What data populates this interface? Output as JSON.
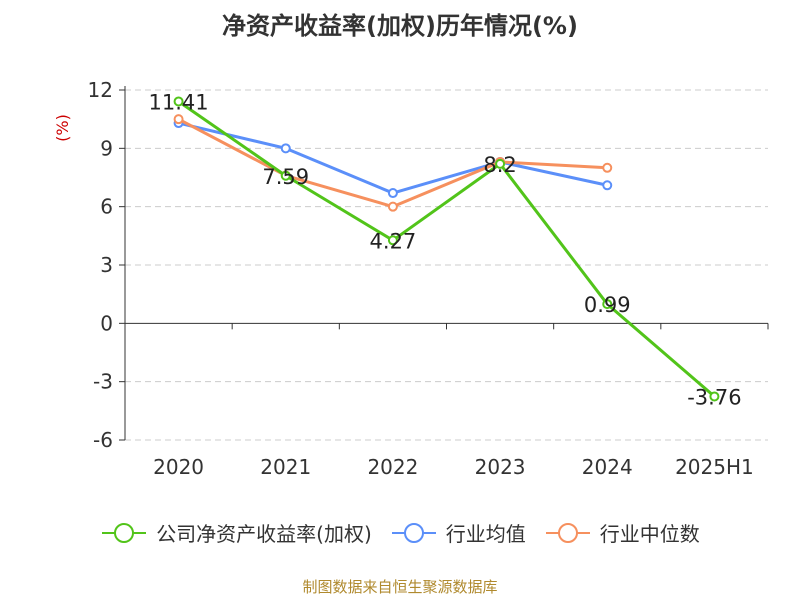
{
  "title": "净资产收益率(加权)历年情况(%)",
  "footer": "制图数据来自恒生聚源数据库",
  "colors": {
    "company": "#52c41a",
    "industry_avg": "#5b8ff9",
    "industry_median": "#f6905e",
    "axis": "#333333",
    "grid": "#cccccc",
    "unit": "#cc0000"
  },
  "chart_data": {
    "type": "line",
    "title": "净资产收益率(加权)历年情况(%)",
    "ylabel": "(%)",
    "xlabel": "",
    "categories": [
      "2020",
      "2021",
      "2022",
      "2023",
      "2024",
      "2025H1"
    ],
    "ylim": [
      -6,
      12
    ],
    "yticks": [
      -6,
      -3,
      0,
      3,
      6,
      9,
      12
    ],
    "grid": "horizontal dashed",
    "legend_position": "bottom",
    "series": [
      {
        "name": "公司净资产收益率(加权)",
        "values": [
          11.41,
          7.59,
          4.27,
          8.2,
          0.99,
          -3.76
        ],
        "labels": [
          "11.41",
          "7.59",
          "4.27",
          "8.2",
          "0.99",
          "-3.76"
        ]
      },
      {
        "name": "行业均值",
        "values": [
          10.3,
          9.0,
          6.7,
          8.3,
          7.1,
          null
        ]
      },
      {
        "name": "行业中位数",
        "values": [
          10.5,
          7.6,
          6.0,
          8.3,
          8.0,
          null
        ]
      }
    ]
  }
}
